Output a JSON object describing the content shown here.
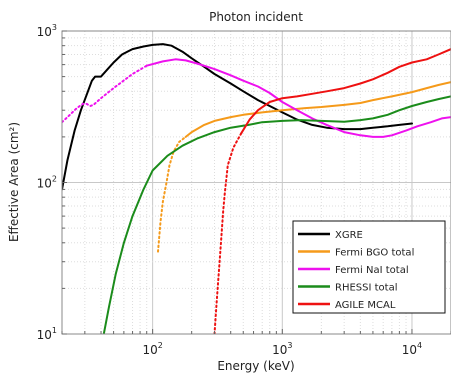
{
  "chart_data": {
    "type": "line",
    "title": "Photon incident",
    "xlabel": "Energy (keV)",
    "ylabel": "Effective Area (cm²)",
    "x_scale": "log",
    "y_scale": "log",
    "xlim": [
      20,
      20000
    ],
    "ylim": [
      10,
      1000
    ],
    "grid": true,
    "legend_position": "bottom-right",
    "x_ticks": [
      {
        "value": 100,
        "base": "10",
        "exp": "2"
      },
      {
        "value": 1000,
        "base": "10",
        "exp": "3"
      },
      {
        "value": 10000,
        "base": "10",
        "exp": "4"
      }
    ],
    "y_ticks": [
      {
        "value": 10,
        "base": "10",
        "exp": "1"
      },
      {
        "value": 100,
        "base": "10",
        "exp": "2"
      },
      {
        "value": 1000,
        "base": "10",
        "exp": "3"
      }
    ],
    "series": [
      {
        "name": "XGRE",
        "color": "#000000",
        "dotted_points": 0,
        "points": [
          [
            20,
            90
          ],
          [
            22,
            140
          ],
          [
            25,
            220
          ],
          [
            28,
            300
          ],
          [
            31,
            380
          ],
          [
            34,
            470
          ],
          [
            36,
            500
          ],
          [
            40,
            500
          ],
          [
            45,
            560
          ],
          [
            50,
            620
          ],
          [
            58,
            700
          ],
          [
            70,
            760
          ],
          [
            85,
            790
          ],
          [
            100,
            810
          ],
          [
            120,
            820
          ],
          [
            140,
            800
          ],
          [
            170,
            730
          ],
          [
            200,
            660
          ],
          [
            250,
            580
          ],
          [
            300,
            520
          ],
          [
            400,
            450
          ],
          [
            500,
            400
          ],
          [
            650,
            350
          ],
          [
            800,
            320
          ],
          [
            1000,
            290
          ],
          [
            1300,
            260
          ],
          [
            1700,
            240
          ],
          [
            2200,
            230
          ],
          [
            3000,
            225
          ],
          [
            4000,
            225
          ],
          [
            5000,
            230
          ],
          [
            6500,
            235
          ],
          [
            8000,
            240
          ],
          [
            10000,
            245
          ]
        ]
      },
      {
        "name": "Fermi BGO total",
        "color": "#f59a1a",
        "dotted_points": 8,
        "points": [
          [
            110,
            35
          ],
          [
            115,
            55
          ],
          [
            120,
            75
          ],
          [
            128,
            100
          ],
          [
            135,
            130
          ],
          [
            145,
            160
          ],
          [
            160,
            185
          ],
          [
            180,
            200
          ],
          [
            200,
            215
          ],
          [
            250,
            240
          ],
          [
            300,
            255
          ],
          [
            400,
            270
          ],
          [
            500,
            280
          ],
          [
            700,
            290
          ],
          [
            1000,
            300
          ],
          [
            1500,
            310
          ],
          [
            2000,
            315
          ],
          [
            3000,
            325
          ],
          [
            4000,
            335
          ],
          [
            5000,
            350
          ],
          [
            7000,
            370
          ],
          [
            10000,
            395
          ],
          [
            13000,
            420
          ],
          [
            16000,
            440
          ],
          [
            20000,
            460
          ]
        ]
      },
      {
        "name": "Fermi NaI total",
        "color": "#ee11ee",
        "dotted_points": 11,
        "points": [
          [
            20,
            250
          ],
          [
            23,
            280
          ],
          [
            26,
            310
          ],
          [
            29,
            330
          ],
          [
            31,
            330
          ],
          [
            33,
            320
          ],
          [
            35,
            325
          ],
          [
            40,
            360
          ],
          [
            50,
            420
          ],
          [
            70,
            520
          ],
          [
            90,
            590
          ],
          [
            120,
            630
          ],
          [
            150,
            650
          ],
          [
            180,
            640
          ],
          [
            220,
            610
          ],
          [
            300,
            560
          ],
          [
            400,
            510
          ],
          [
            500,
            470
          ],
          [
            650,
            430
          ],
          [
            800,
            390
          ],
          [
            1000,
            340
          ],
          [
            1300,
            300
          ],
          [
            1700,
            265
          ],
          [
            2200,
            240
          ],
          [
            3000,
            215
          ],
          [
            4000,
            205
          ],
          [
            5000,
            200
          ],
          [
            6000,
            200
          ],
          [
            7000,
            205
          ],
          [
            9000,
            220
          ],
          [
            11000,
            235
          ],
          [
            14000,
            250
          ],
          [
            17000,
            265
          ],
          [
            20000,
            270
          ]
        ]
      },
      {
        "name": "RHESSI total",
        "color": "#1b8c1b",
        "dotted_points": 0,
        "points": [
          [
            42,
            10
          ],
          [
            46,
            15
          ],
          [
            52,
            25
          ],
          [
            60,
            40
          ],
          [
            70,
            60
          ],
          [
            85,
            90
          ],
          [
            100,
            120
          ],
          [
            130,
            150
          ],
          [
            170,
            175
          ],
          [
            220,
            195
          ],
          [
            300,
            215
          ],
          [
            400,
            230
          ],
          [
            550,
            240
          ],
          [
            700,
            250
          ],
          [
            1000,
            255
          ],
          [
            1400,
            258
          ],
          [
            2000,
            255
          ],
          [
            3000,
            252
          ],
          [
            4000,
            258
          ],
          [
            5000,
            265
          ],
          [
            6500,
            280
          ],
          [
            8000,
            300
          ],
          [
            10000,
            320
          ],
          [
            13000,
            340
          ],
          [
            16000,
            355
          ],
          [
            20000,
            370
          ]
        ]
      },
      {
        "name": "AGILE MCAL",
        "color": "#ee1111",
        "dotted_points": 10,
        "points": [
          [
            300,
            10
          ],
          [
            310,
            15
          ],
          [
            320,
            22
          ],
          [
            330,
            32
          ],
          [
            340,
            45
          ],
          [
            350,
            65
          ],
          [
            360,
            85
          ],
          [
            380,
            130
          ],
          [
            420,
            170
          ],
          [
            480,
            210
          ],
          [
            560,
            260
          ],
          [
            650,
            300
          ],
          [
            800,
            340
          ],
          [
            1000,
            360
          ],
          [
            1300,
            370
          ],
          [
            1700,
            385
          ],
          [
            2200,
            400
          ],
          [
            3000,
            420
          ],
          [
            4000,
            450
          ],
          [
            5000,
            480
          ],
          [
            6500,
            530
          ],
          [
            8000,
            580
          ],
          [
            10000,
            620
          ],
          [
            13000,
            650
          ],
          [
            16000,
            700
          ],
          [
            20000,
            760
          ]
        ]
      }
    ]
  }
}
